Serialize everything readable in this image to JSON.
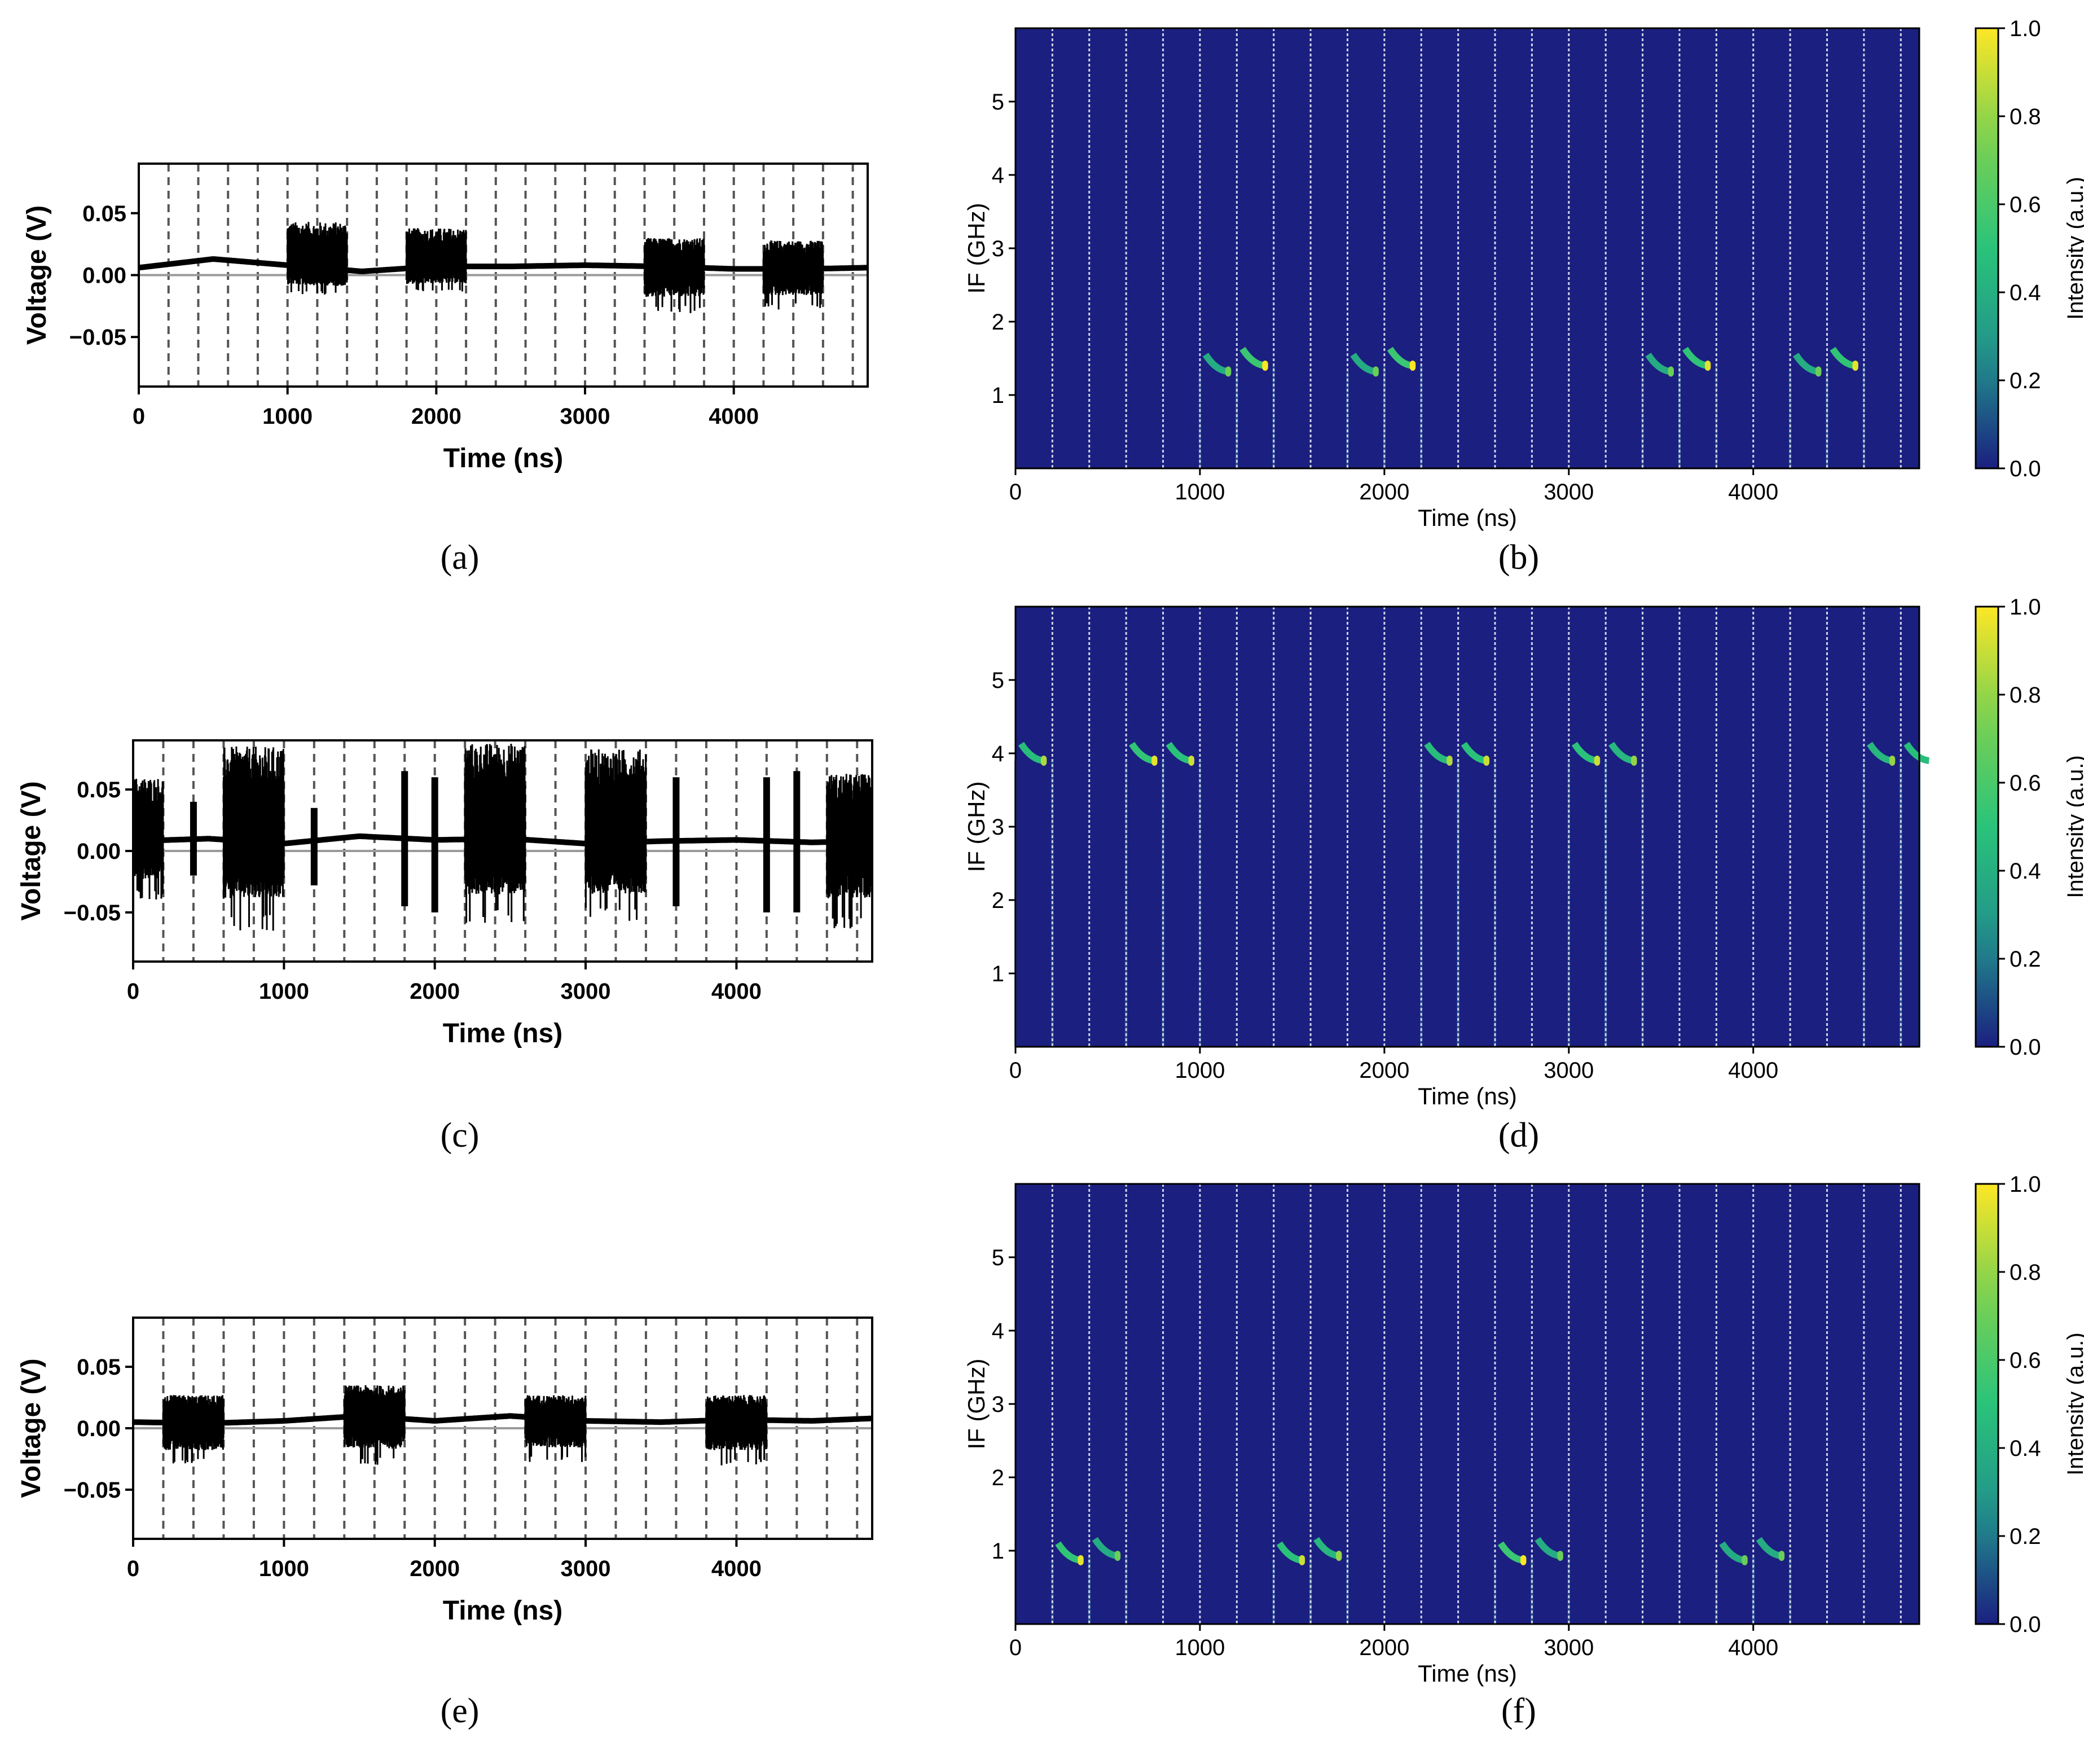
{
  "figure": {
    "colors": {
      "waveform": "#000000",
      "spectrogram_background": "#1b1f80",
      "segment_marker": "#cfd3e8",
      "colormap": [
        "#440154",
        "#1b1f80",
        "#21918c",
        "#2ac37a",
        "#7ad151",
        "#fde725"
      ]
    },
    "panels": [
      {
        "id": "a",
        "caption": "(a)",
        "chart_data": {
          "type": "line",
          "title": "",
          "xlabel": "Time (ns)",
          "ylabel": "Voltage (V)",
          "xlim": [
            0,
            4900
          ],
          "ylim": [
            -0.09,
            0.09
          ],
          "xticks": [
            "0",
            "1000",
            "2000",
            "3000",
            "4000"
          ],
          "xtick_values": [
            0,
            1000,
            2000,
            3000,
            4000
          ],
          "yticks": [
            "0.05",
            "0.00",
            "−0.05"
          ],
          "ytick_values": [
            0.05,
            0,
            -0.05
          ],
          "grid_x": "dashed every 200 ns",
          "segment_period_ns": 200,
          "baseline_drift": [
            [
              0,
              0.006
            ],
            [
              500,
              0.013
            ],
            [
              1000,
              0.008
            ],
            [
              1500,
              0.003
            ],
            [
              2000,
              0.007
            ],
            [
              2500,
              0.007
            ],
            [
              3000,
              0.008
            ],
            [
              3500,
              0.007
            ],
            [
              4000,
              0.005
            ],
            [
              4500,
              0.005
            ],
            [
              4900,
              0.006
            ]
          ],
          "bursts": [
            {
              "start": 1000,
              "end": 1400,
              "max": 0.043,
              "min": -0.016
            },
            {
              "start": 1800,
              "end": 2200,
              "max": 0.038,
              "min": -0.014
            },
            {
              "start": 3400,
              "end": 3800,
              "max": 0.03,
              "min": -0.031
            },
            {
              "start": 4200,
              "end": 4600,
              "max": 0.028,
              "min": -0.028
            }
          ]
        }
      },
      {
        "id": "b",
        "caption": "(b)",
        "chart_data": {
          "type": "heatmap",
          "title": "",
          "xlabel": "Time (ns)",
          "ylabel": "IF (GHz)",
          "xlim": [
            0,
            4900
          ],
          "ylim": [
            0,
            6
          ],
          "xticks": [
            "0",
            "1000",
            "2000",
            "3000",
            "4000"
          ],
          "xtick_values": [
            0,
            1000,
            2000,
            3000,
            4000
          ],
          "yticks": [
            "1",
            "2",
            "3",
            "4",
            "5"
          ],
          "ytick_values": [
            1,
            2,
            3,
            4,
            5
          ],
          "colorbar_label": "Intensity (a.u.)",
          "colorbar_ticks": [
            "0.0",
            "0.2",
            "0.4",
            "0.6",
            "0.8",
            "1.0"
          ],
          "colorbar_tick_values": [
            0,
            0.2,
            0.4,
            0.6,
            0.8,
            1.0
          ],
          "segment_period_ns": 200,
          "signal_segments": [
            {
              "start": 1000,
              "end": 1200,
              "freq": 1.32,
              "intensity": 0.7
            },
            {
              "start": 1200,
              "end": 1400,
              "freq": 1.4,
              "intensity": 1.0
            },
            {
              "start": 1800,
              "end": 2000,
              "freq": 1.32,
              "intensity": 0.7
            },
            {
              "start": 2000,
              "end": 2200,
              "freq": 1.4,
              "intensity": 1.0
            },
            {
              "start": 3400,
              "end": 3600,
              "freq": 1.32,
              "intensity": 0.7
            },
            {
              "start": 3600,
              "end": 3800,
              "freq": 1.4,
              "intensity": 0.95
            },
            {
              "start": 4200,
              "end": 4400,
              "freq": 1.32,
              "intensity": 0.7
            },
            {
              "start": 4400,
              "end": 4600,
              "freq": 1.4,
              "intensity": 0.95
            }
          ]
        }
      },
      {
        "id": "c",
        "caption": "(c)",
        "chart_data": {
          "type": "line",
          "title": "",
          "xlabel": "Time (ns)",
          "ylabel": "Voltage (V)",
          "xlim": [
            0,
            4900
          ],
          "ylim": [
            -0.09,
            0.09
          ],
          "xticks": [
            "0",
            "1000",
            "2000",
            "3000",
            "4000"
          ],
          "xtick_values": [
            0,
            1000,
            2000,
            3000,
            4000
          ],
          "yticks": [
            "0.05",
            "0.00",
            "−0.05"
          ],
          "ytick_values": [
            0.05,
            0,
            -0.05
          ],
          "grid_x": "dashed every 200 ns",
          "segment_period_ns": 200,
          "baseline_drift": [
            [
              0,
              0.008
            ],
            [
              500,
              0.01
            ],
            [
              1000,
              0.006
            ],
            [
              1500,
              0.012
            ],
            [
              2000,
              0.009
            ],
            [
              2500,
              0.01
            ],
            [
              3000,
              0.006
            ],
            [
              3500,
              0.008
            ],
            [
              4000,
              0.009
            ],
            [
              4500,
              0.007
            ],
            [
              4900,
              0.008
            ]
          ],
          "bursts": [
            {
              "start": 0,
              "end": 200,
              "max": 0.06,
              "min": -0.04
            },
            {
              "start": 600,
              "end": 1000,
              "max": 0.085,
              "min": -0.065
            },
            {
              "start": 2200,
              "end": 2600,
              "max": 0.088,
              "min": -0.06
            },
            {
              "start": 3000,
              "end": 3400,
              "max": 0.083,
              "min": -0.057
            },
            {
              "start": 4600,
              "end": 4900,
              "max": 0.063,
              "min": -0.063
            }
          ],
          "spikes": [
            {
              "t": 400,
              "max": 0.04,
              "min": -0.02
            },
            {
              "t": 1200,
              "max": 0.035,
              "min": -0.028
            },
            {
              "t": 1800,
              "max": 0.065,
              "min": -0.045
            },
            {
              "t": 2000,
              "max": 0.06,
              "min": -0.05
            },
            {
              "t": 3600,
              "max": 0.06,
              "min": -0.045
            },
            {
              "t": 4200,
              "max": 0.06,
              "min": -0.05
            },
            {
              "t": 4400,
              "max": 0.065,
              "min": -0.05
            }
          ]
        }
      },
      {
        "id": "d",
        "caption": "(d)",
        "chart_data": {
          "type": "heatmap",
          "title": "",
          "xlabel": "Time (ns)",
          "ylabel": "IF (GHz)",
          "xlim": [
            0,
            4900
          ],
          "ylim": [
            0,
            6
          ],
          "xticks": [
            "0",
            "1000",
            "2000",
            "3000",
            "4000"
          ],
          "xtick_values": [
            0,
            1000,
            2000,
            3000,
            4000
          ],
          "yticks": [
            "1",
            "2",
            "3",
            "4",
            "5"
          ],
          "ytick_values": [
            1,
            2,
            3,
            4,
            5
          ],
          "colorbar_label": "Intensity (a.u.)",
          "colorbar_ticks": [
            "0.0",
            "0.2",
            "0.4",
            "0.6",
            "0.8",
            "1.0"
          ],
          "colorbar_tick_values": [
            0,
            0.2,
            0.4,
            0.6,
            0.8,
            1.0
          ],
          "segment_period_ns": 200,
          "signal_segments": [
            {
              "start": 0,
              "end": 200,
              "freq": 3.9,
              "intensity": 0.85
            },
            {
              "start": 600,
              "end": 800,
              "freq": 3.9,
              "intensity": 0.95
            },
            {
              "start": 800,
              "end": 1000,
              "freq": 3.9,
              "intensity": 0.9
            },
            {
              "start": 2200,
              "end": 2400,
              "freq": 3.9,
              "intensity": 0.85
            },
            {
              "start": 2400,
              "end": 2600,
              "freq": 3.9,
              "intensity": 0.9
            },
            {
              "start": 3000,
              "end": 3200,
              "freq": 3.9,
              "intensity": 0.9
            },
            {
              "start": 3200,
              "end": 3400,
              "freq": 3.9,
              "intensity": 0.8
            },
            {
              "start": 4600,
              "end": 4800,
              "freq": 3.9,
              "intensity": 0.8
            },
            {
              "start": 4800,
              "end": 4900,
              "freq": 3.9,
              "intensity": 0.85
            }
          ]
        }
      },
      {
        "id": "e",
        "caption": "(e)",
        "chart_data": {
          "type": "line",
          "title": "",
          "xlabel": "Time (ns)",
          "ylabel": "Voltage (V)",
          "xlim": [
            0,
            4900
          ],
          "ylim": [
            -0.09,
            0.09
          ],
          "xticks": [
            "0",
            "1000",
            "2000",
            "3000",
            "4000"
          ],
          "xtick_values": [
            0,
            1000,
            2000,
            3000,
            4000
          ],
          "yticks": [
            "0.05",
            "0.00",
            "−0.05"
          ],
          "ytick_values": [
            0.05,
            0,
            -0.05
          ],
          "grid_x": "dashed every 200 ns",
          "segment_period_ns": 200,
          "baseline_drift": [
            [
              0,
              0.005
            ],
            [
              500,
              0.004
            ],
            [
              1000,
              0.006
            ],
            [
              1500,
              0.01
            ],
            [
              2000,
              0.006
            ],
            [
              2500,
              0.01
            ],
            [
              3000,
              0.006
            ],
            [
              3500,
              0.005
            ],
            [
              4000,
              0.007
            ],
            [
              4500,
              0.006
            ],
            [
              4900,
              0.008
            ]
          ],
          "bursts": [
            {
              "start": 200,
              "end": 600,
              "max": 0.027,
              "min": -0.03
            },
            {
              "start": 1400,
              "end": 1800,
              "max": 0.035,
              "min": -0.03
            },
            {
              "start": 2600,
              "end": 3000,
              "max": 0.027,
              "min": -0.028
            },
            {
              "start": 3800,
              "end": 4200,
              "max": 0.027,
              "min": -0.031
            }
          ]
        }
      },
      {
        "id": "f",
        "caption": "(f)",
        "chart_data": {
          "type": "heatmap",
          "title": "",
          "xlabel": "Time (ns)",
          "ylabel": "IF (GHz)",
          "xlim": [
            0,
            4900
          ],
          "ylim": [
            0,
            6
          ],
          "xticks": [
            "0",
            "1000",
            "2000",
            "3000",
            "4000"
          ],
          "xtick_values": [
            0,
            1000,
            2000,
            3000,
            4000
          ],
          "yticks": [
            "1",
            "2",
            "3",
            "4",
            "5"
          ],
          "ytick_values": [
            1,
            2,
            3,
            4,
            5
          ],
          "colorbar_label": "Intensity (a.u.)",
          "colorbar_ticks": [
            "0.0",
            "0.2",
            "0.4",
            "0.6",
            "0.8",
            "1.0"
          ],
          "colorbar_tick_values": [
            0,
            0.2,
            0.4,
            0.6,
            0.8,
            1.0
          ],
          "segment_period_ns": 200,
          "signal_segments": [
            {
              "start": 200,
              "end": 400,
              "freq": 0.87,
              "intensity": 0.95
            },
            {
              "start": 400,
              "end": 600,
              "freq": 0.93,
              "intensity": 0.7
            },
            {
              "start": 1400,
              "end": 1600,
              "freq": 0.87,
              "intensity": 0.9
            },
            {
              "start": 1600,
              "end": 1800,
              "freq": 0.93,
              "intensity": 0.8
            },
            {
              "start": 2600,
              "end": 2800,
              "freq": 0.87,
              "intensity": 1.0
            },
            {
              "start": 2800,
              "end": 3000,
              "freq": 0.93,
              "intensity": 0.7
            },
            {
              "start": 3800,
              "end": 4000,
              "freq": 0.87,
              "intensity": 0.7
            },
            {
              "start": 4000,
              "end": 4200,
              "freq": 0.93,
              "intensity": 0.7
            }
          ]
        }
      }
    ]
  }
}
